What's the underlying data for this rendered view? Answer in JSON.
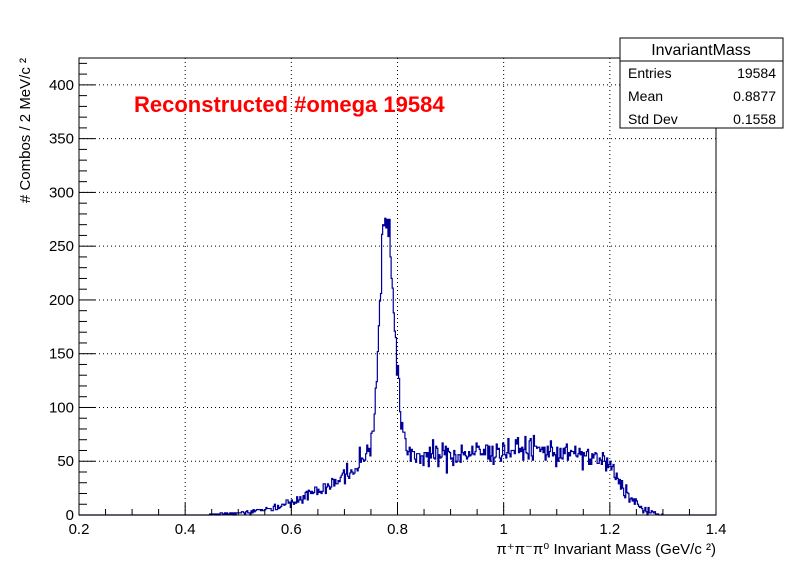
{
  "chart_data": {
    "type": "histogram",
    "title": "Reconstructed #omega 19584",
    "xlabel": "π⁺π⁻π⁰ Invariant Mass (GeV/c ²)",
    "ylabel": "# Combos / 2 MeV/c ²",
    "xlim": [
      0.2,
      1.4
    ],
    "ylim": [
      0,
      425
    ],
    "grid": true,
    "line_color": "#000099",
    "title_color": "#ff0000",
    "bin_width": 0.002,
    "x_ticks": [
      {
        "value": 0.2,
        "label": "0.2"
      },
      {
        "value": 0.4,
        "label": "0.4"
      },
      {
        "value": 0.6,
        "label": "0.6"
      },
      {
        "value": 0.8,
        "label": "0.8"
      },
      {
        "value": 1.0,
        "label": "1"
      },
      {
        "value": 1.2,
        "label": "1.2"
      },
      {
        "value": 1.4,
        "label": "1.4"
      }
    ],
    "y_ticks": [
      {
        "value": 0,
        "label": "0"
      },
      {
        "value": 50,
        "label": "50"
      },
      {
        "value": 100,
        "label": "100"
      },
      {
        "value": 150,
        "label": "150"
      },
      {
        "value": 200,
        "label": "200"
      },
      {
        "value": 250,
        "label": "250"
      },
      {
        "value": 300,
        "label": "300"
      },
      {
        "value": 350,
        "label": "350"
      },
      {
        "value": 400,
        "label": "400"
      }
    ],
    "profile": [
      [
        0.44,
        0
      ],
      [
        0.46,
        1
      ],
      [
        0.5,
        2
      ],
      [
        0.54,
        4
      ],
      [
        0.56,
        6
      ],
      [
        0.58,
        9
      ],
      [
        0.6,
        13
      ],
      [
        0.62,
        17
      ],
      [
        0.64,
        21
      ],
      [
        0.66,
        25
      ],
      [
        0.68,
        30
      ],
      [
        0.7,
        36
      ],
      [
        0.72,
        42
      ],
      [
        0.73,
        47
      ],
      [
        0.74,
        55
      ],
      [
        0.75,
        68
      ],
      [
        0.755,
        85
      ],
      [
        0.76,
        120
      ],
      [
        0.765,
        175
      ],
      [
        0.77,
        245
      ],
      [
        0.775,
        272
      ],
      [
        0.78,
        275
      ],
      [
        0.785,
        268
      ],
      [
        0.79,
        230
      ],
      [
        0.795,
        170
      ],
      [
        0.8,
        135
      ],
      [
        0.805,
        100
      ],
      [
        0.81,
        75
      ],
      [
        0.815,
        63
      ],
      [
        0.82,
        58
      ],
      [
        0.85,
        55
      ],
      [
        0.9,
        56
      ],
      [
        0.95,
        58
      ],
      [
        1.0,
        60
      ],
      [
        1.05,
        62
      ],
      [
        1.1,
        58
      ],
      [
        1.15,
        55
      ],
      [
        1.18,
        52
      ],
      [
        1.2,
        45
      ],
      [
        1.22,
        30
      ],
      [
        1.24,
        15
      ],
      [
        1.26,
        6
      ],
      [
        1.28,
        2
      ],
      [
        1.3,
        0
      ],
      [
        1.4,
        0
      ]
    ],
    "stats_box": {
      "title": "InvariantMass",
      "rows": [
        {
          "label": "Entries",
          "value": "19584"
        },
        {
          "label": "Mean",
          "value": "0.8877"
        },
        {
          "label": "Std Dev",
          "value": "0.1558"
        }
      ]
    }
  }
}
